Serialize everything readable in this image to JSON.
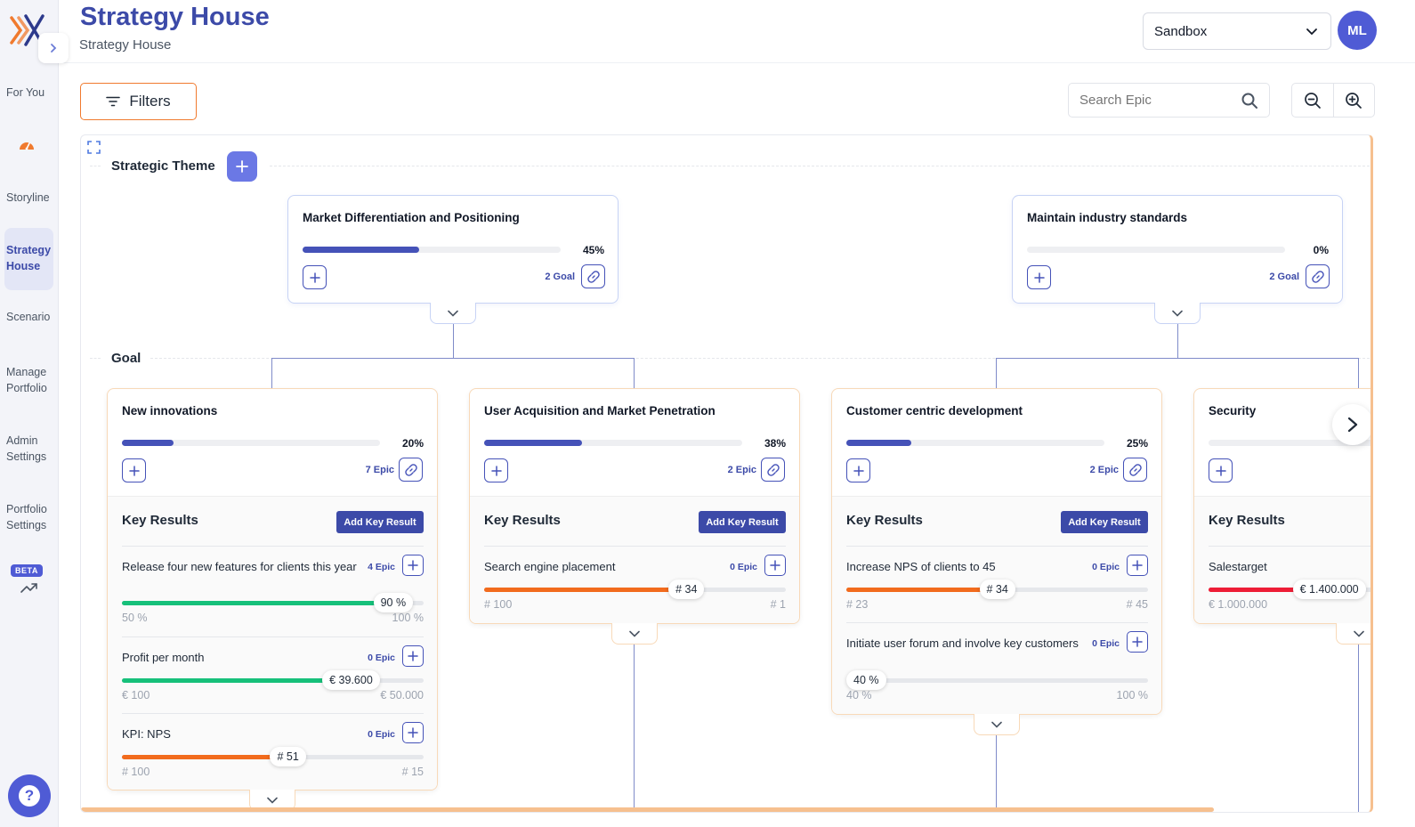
{
  "nav": {
    "items": [
      {
        "label": "For You"
      },
      {
        "label": "Storyline"
      },
      {
        "label": "Strategy House"
      },
      {
        "label": "Scenario"
      },
      {
        "label": "Manage Portfolio"
      },
      {
        "label": "Admin Settings"
      },
      {
        "label": "Portfolio Settings"
      }
    ],
    "beta_label": "BETA",
    "help_label": "?"
  },
  "header": {
    "title": "Strategy House",
    "subtitle": "Strategy House",
    "environment": "Sandbox",
    "avatar_initials": "ML"
  },
  "toolbar": {
    "filters_label": "Filters",
    "search_placeholder": "Search Epic"
  },
  "rows": {
    "theme_label": "Strategic Theme",
    "goal_label": "Goal"
  },
  "themes": [
    {
      "title": "Market Differentiation and Positioning",
      "progress": 45,
      "progress_label": "45%",
      "count_label": "2 Goal"
    },
    {
      "title": "Maintain industry standards",
      "progress": 0,
      "progress_label": "0%",
      "count_label": "2 Goal"
    }
  ],
  "goals": [
    {
      "title": "New innovations",
      "progress": 20,
      "progress_label": "20%",
      "count_label": "7 Epic",
      "kr_heading": "Key Results",
      "add_kr_label": "Add Key Result",
      "key_results": [
        {
          "title": "Release four new features for clients this year",
          "epic_label": "4 Epic",
          "fill": 0.9,
          "value_label": "90 %",
          "min_label": "50 %",
          "max_label": "100 %",
          "color": "#16c07a"
        },
        {
          "title": "Profit per month",
          "epic_label": "0 Epic",
          "fill": 0.76,
          "value_label": "€ 39.600",
          "min_label": "€ 100",
          "max_label": "€ 50.000",
          "color": "#16c07a"
        },
        {
          "title": "KPI: NPS",
          "epic_label": "0 Epic",
          "fill": 0.55,
          "value_label": "# 51",
          "min_label": "# 100",
          "max_label": "# 15",
          "color": "#f26b1d"
        }
      ]
    },
    {
      "title": "User Acquisition and Market Penetration",
      "progress": 38,
      "progress_label": "38%",
      "count_label": "2 Epic",
      "kr_heading": "Key Results",
      "add_kr_label": "Add Key Result",
      "key_results": [
        {
          "title": "Search engine placement",
          "epic_label": "0 Epic",
          "fill": 0.67,
          "value_label": "# 34",
          "min_label": "# 100",
          "max_label": "# 1",
          "color": "#f26b1d"
        }
      ]
    },
    {
      "title": "Customer centric development",
      "progress": 25,
      "progress_label": "25%",
      "count_label": "2 Epic",
      "kr_heading": "Key Results",
      "add_kr_label": "Add Key Result",
      "key_results": [
        {
          "title": "Increase NPS of clients to 45",
          "epic_label": "0 Epic",
          "fill": 0.5,
          "value_label": "# 34",
          "min_label": "# 23",
          "max_label": "# 45",
          "color": "#f26b1d"
        },
        {
          "title": "Initiate user forum and involve key customers",
          "epic_label": "0 Epic",
          "fill": 0.0,
          "value_label": "40 %",
          "min_label": "40 %",
          "max_label": "100 %",
          "color": "#16c07a"
        }
      ]
    },
    {
      "title": "Security",
      "progress": 0,
      "progress_label": "",
      "count_label": "",
      "kr_heading": "Key Results",
      "add_kr_label": "",
      "key_results": [
        {
          "title": "Salestarget",
          "epic_label": "",
          "fill": 0.4,
          "value_label": "€ 1.400.000",
          "min_label": "€ 1.000.000",
          "max_label": "",
          "color": "#ee1d36"
        }
      ]
    }
  ],
  "colors": {
    "primary": "#3c4aa8",
    "accent_orange": "#f07a2e",
    "progress_green": "#16c07a",
    "progress_orange": "#f26b1d",
    "progress_red": "#ee1d36"
  }
}
